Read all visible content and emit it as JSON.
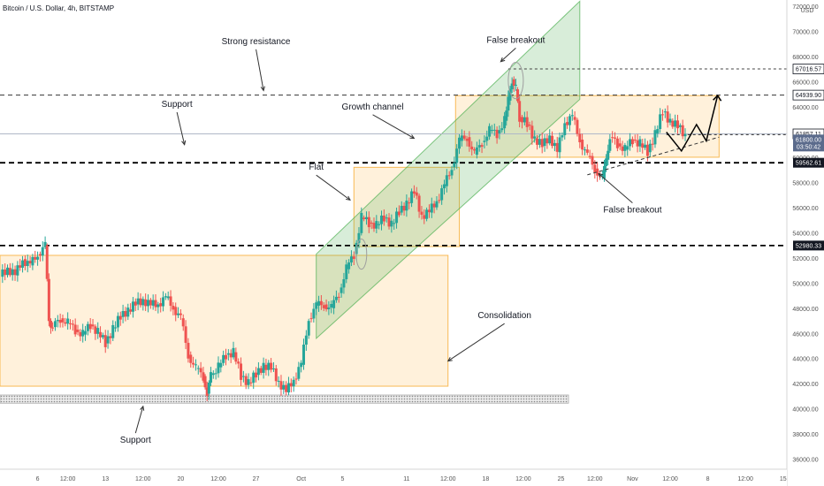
{
  "header": {
    "symbol_line": "Bitcoin / U.S. Dollar, 4h, BITSTAMP",
    "currency": "USD"
  },
  "chart_data": {
    "type": "candlestick",
    "title": "Bitcoin / U.S. Dollar, 4h, BITSTAMP",
    "xlabel": "",
    "ylabel": "USD",
    "ylim": [
      35200,
      72500
    ],
    "y_ticks": [
      36000,
      38000,
      40000,
      42000,
      44000,
      46000,
      48000,
      50000,
      52000,
      54000,
      56000,
      58000,
      60000,
      62000,
      64000,
      66000,
      68000,
      70000,
      72000
    ],
    "x_range_days": [
      0,
      104.5
    ],
    "x_ticks": [
      {
        "day": 5,
        "label": "6"
      },
      {
        "day": 9,
        "label": "12:00"
      },
      {
        "day": 14,
        "label": "13"
      },
      {
        "day": 19,
        "label": "12:00"
      },
      {
        "day": 24,
        "label": "20"
      },
      {
        "day": 29,
        "label": "12:00"
      },
      {
        "day": 34,
        "label": "27"
      },
      {
        "day": 40,
        "label": "Oct"
      },
      {
        "day": 45.5,
        "label": "5"
      },
      {
        "day": 54,
        "label": "11"
      },
      {
        "day": 59.5,
        "label": "12:00"
      },
      {
        "day": 64.5,
        "label": "18"
      },
      {
        "day": 69.5,
        "label": "12:00"
      },
      {
        "day": 74.5,
        "label": "25"
      },
      {
        "day": 79,
        "label": "12:00"
      },
      {
        "day": 84,
        "label": "Nov"
      },
      {
        "day": 89,
        "label": "12:00"
      },
      {
        "day": 94,
        "label": "8"
      },
      {
        "day": 99,
        "label": "12:00"
      },
      {
        "day": 104,
        "label": "15"
      }
    ],
    "price_labels": [
      {
        "value": 67016.57,
        "text": "67016.57",
        "style": "light"
      },
      {
        "value": 64939.9,
        "text": "64939.90",
        "style": "light"
      },
      {
        "value": 61857.11,
        "text": "61857.11",
        "style": "light"
      },
      {
        "value": 61800.0,
        "text": "61800.00",
        "sub": "03:50:42",
        "style": "current"
      },
      {
        "value": 59562.61,
        "text": "59562.61",
        "style": "dark"
      },
      {
        "value": 52980.33,
        "text": "52980.33",
        "style": "dark"
      }
    ],
    "levels": [
      {
        "value": 67016.57,
        "x_from": 67.5,
        "dash": "fine",
        "color": "#444444"
      },
      {
        "value": 64939.9,
        "x_from": 0,
        "dash": "medium",
        "color": "#333333"
      },
      {
        "value": 61857.11,
        "x_from": 0,
        "dash": "solid",
        "color": "#b0b8c8"
      },
      {
        "value": 61800.0,
        "x_from": 88.5,
        "dash": "fine",
        "color": "#333333"
      },
      {
        "value": 59562.61,
        "x_from": 0,
        "dash": "thick",
        "color": "#000000"
      },
      {
        "value": 52980.33,
        "x_from": 0,
        "dash": "thick",
        "color": "#000000"
      }
    ],
    "zones": [
      {
        "name": "consolidation-zone",
        "x0": 0,
        "x1": 59.5,
        "y0": 41800,
        "y1": 52200
      },
      {
        "name": "flat-zone",
        "x0": 47,
        "x1": 61,
        "y0": 52900,
        "y1": 59200
      },
      {
        "name": "top-range-zone",
        "x0": 60.5,
        "x1": 95.5,
        "y0": 60000,
        "y1": 64900
      }
    ],
    "channel": {
      "x0": 42,
      "x1": 77,
      "bottom_start": 45600,
      "bottom_end": 64600,
      "top_start": 52300,
      "top_end": 72400
    },
    "support_band": {
      "x0": 0,
      "x1": 75.5,
      "y0": 40450,
      "y1": 41100
    },
    "ellipses": [
      {
        "cx": 48,
        "cy": 52300,
        "rx": 0.7,
        "ry": 1200
      },
      {
        "cx": 68.5,
        "cy": 66100,
        "rx": 1.0,
        "ry": 1450
      }
    ],
    "projection": [
      {
        "x": 88.5,
        "y": 62000
      },
      {
        "x": 90.5,
        "y": 60500
      },
      {
        "x": 92.5,
        "y": 62600
      },
      {
        "x": 93.8,
        "y": 61300
      },
      {
        "x": 95.3,
        "y": 64900
      }
    ],
    "breakout_trend": {
      "x0": 78,
      "y0": 58600,
      "x1": 95.5,
      "y1": 61600
    },
    "annotations": [
      {
        "text": "Strong resistance",
        "x": 34,
        "y": 69000,
        "ax": 35,
        "ay": 65300
      },
      {
        "text": "False breakout",
        "x": 68.5,
        "y": 69100,
        "ax": 66.5,
        "ay": 67600
      },
      {
        "text": "Support",
        "x": 23.5,
        "y": 64000,
        "ax": 24.5,
        "ay": 61000
      },
      {
        "text": "Growth channel",
        "x": 49.5,
        "y": 63800,
        "ax": 55,
        "ay": 61500
      },
      {
        "text": "Flat",
        "x": 42,
        "y": 59000,
        "ax": 46.5,
        "ay": 56600
      },
      {
        "text": "False breakout",
        "x": 84,
        "y": 55600,
        "ax": 79.5,
        "ay": 58700
      },
      {
        "text": "Consolidation",
        "x": 67,
        "y": 47200,
        "ax": 59.5,
        "ay": 43800
      },
      {
        "text": "Support",
        "x": 18,
        "y": 37300,
        "ax": 19,
        "ay": 40200
      }
    ],
    "series": [
      {
        "name": "BTCUSD 4h",
        "points": [
          [
            0.0,
            50500
          ],
          [
            1.0,
            51200
          ],
          [
            2.0,
            50600
          ],
          [
            3.0,
            51900
          ],
          [
            4.0,
            51400
          ],
          [
            5.0,
            52300
          ],
          [
            6.0,
            53000
          ],
          [
            6.5,
            47000
          ],
          [
            7.0,
            46500
          ],
          [
            8.0,
            47200
          ],
          [
            9.0,
            46800
          ],
          [
            10.0,
            46300
          ],
          [
            11.0,
            45900
          ],
          [
            12.0,
            46700
          ],
          [
            13.0,
            46100
          ],
          [
            14.0,
            45200
          ],
          [
            15.0,
            46400
          ],
          [
            16.0,
            47300
          ],
          [
            17.0,
            47900
          ],
          [
            18.0,
            48300
          ],
          [
            19.0,
            48700
          ],
          [
            20.0,
            48200
          ],
          [
            21.0,
            48400
          ],
          [
            22.0,
            48800
          ],
          [
            23.0,
            48100
          ],
          [
            24.0,
            47200
          ],
          [
            25.0,
            44300
          ],
          [
            26.0,
            43200
          ],
          [
            27.0,
            42600
          ],
          [
            27.5,
            41200
          ],
          [
            28.0,
            42700
          ],
          [
            29.0,
            43300
          ],
          [
            30.0,
            44300
          ],
          [
            31.0,
            44500
          ],
          [
            32.0,
            42600
          ],
          [
            33.0,
            42100
          ],
          [
            34.0,
            42700
          ],
          [
            35.0,
            43500
          ],
          [
            36.0,
            43200
          ],
          [
            37.0,
            42200
          ],
          [
            38.0,
            41300
          ],
          [
            39.0,
            42400
          ],
          [
            40.0,
            43500
          ],
          [
            41.0,
            47200
          ],
          [
            42.0,
            48200
          ],
          [
            43.0,
            48300
          ],
          [
            44.0,
            48000
          ],
          [
            45.0,
            49200
          ],
          [
            46.0,
            51100
          ],
          [
            47.0,
            52300
          ],
          [
            48.0,
            55200
          ],
          [
            49.0,
            54800
          ],
          [
            50.0,
            54600
          ],
          [
            51.0,
            55200
          ],
          [
            52.0,
            54700
          ],
          [
            53.0,
            55600
          ],
          [
            54.0,
            56400
          ],
          [
            55.0,
            57200
          ],
          [
            56.0,
            55400
          ],
          [
            57.0,
            55600
          ],
          [
            58.0,
            56600
          ],
          [
            59.0,
            57700
          ],
          [
            60.0,
            59200
          ],
          [
            61.0,
            61300
          ],
          [
            62.0,
            61600
          ],
          [
            63.0,
            60200
          ],
          [
            64.0,
            61200
          ],
          [
            65.0,
            62100
          ],
          [
            66.0,
            61900
          ],
          [
            67.0,
            62900
          ],
          [
            67.5,
            64500
          ],
          [
            68.0,
            66200
          ],
          [
            68.5,
            65400
          ],
          [
            69.0,
            63200
          ],
          [
            70.0,
            62600
          ],
          [
            71.0,
            61500
          ],
          [
            72.0,
            60900
          ],
          [
            73.0,
            61700
          ],
          [
            74.0,
            60400
          ],
          [
            75.0,
            62800
          ],
          [
            76.0,
            63200
          ],
          [
            77.0,
            61400
          ],
          [
            78.0,
            60100
          ],
          [
            79.0,
            59100
          ],
          [
            80.0,
            58300
          ],
          [
            80.5,
            59800
          ],
          [
            81.0,
            61600
          ],
          [
            82.0,
            61100
          ],
          [
            83.0,
            60600
          ],
          [
            84.0,
            61400
          ],
          [
            85.0,
            61100
          ],
          [
            86.0,
            60400
          ],
          [
            87.0,
            61900
          ],
          [
            88.0,
            63600
          ],
          [
            89.0,
            62900
          ],
          [
            90.0,
            62400
          ],
          [
            91.0,
            61800
          ]
        ]
      }
    ]
  }
}
